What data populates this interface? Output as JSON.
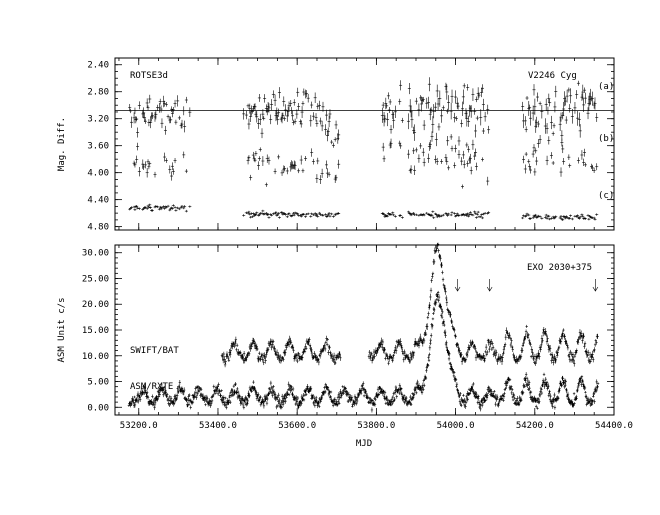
{
  "chart_data": [
    {
      "type": "scatter",
      "panel": "top",
      "ylabel": "Mag. Diff.",
      "xlim": [
        53140,
        54400
      ],
      "ylim": [
        4.85,
        2.3
      ],
      "y_inverted": true,
      "yticks": [
        "2.40",
        "2.80",
        "3.20",
        "3.60",
        "4.00",
        "4.40",
        "4.80"
      ],
      "yticks_values": [
        2.4,
        2.8,
        3.2,
        3.6,
        4.0,
        4.4,
        4.8
      ],
      "reference_line_y": 3.08,
      "annotations": {
        "left": "ROTSE3d",
        "right": "V2246 Cyg"
      },
      "series": [
        {
          "label": "(a)",
          "base": 3.08,
          "spread": 0.12
        },
        {
          "label": "(b)",
          "base": 3.9,
          "spread": 0.1
        },
        {
          "label": "(c)",
          "base": 4.56,
          "spread": 0.02
        }
      ],
      "observing_seasons_mjd": [
        [
          53175,
          53335
        ],
        [
          53465,
          53705
        ],
        [
          53815,
          54085
        ],
        [
          54165,
          54360
        ]
      ],
      "legend": "none",
      "grid": false
    },
    {
      "type": "scatter",
      "panel": "bottom",
      "xlabel": "MJD",
      "ylabel": "ASM Unit c/s",
      "xlim": [
        53140,
        54400
      ],
      "ylim": [
        -1.5,
        31.5
      ],
      "xticks": [
        "53200.0",
        "53400.0",
        "53600.0",
        "53800.0",
        "54000.0",
        "54200.0",
        "54400.0"
      ],
      "xticks_values": [
        53200,
        53400,
        53600,
        53800,
        54000,
        54200,
        54400
      ],
      "yticks": [
        "0.00",
        "5.00",
        "10.00",
        "15.00",
        "20.00",
        "25.00",
        "30.00"
      ],
      "yticks_values": [
        0,
        5,
        10,
        15,
        20,
        25,
        30
      ],
      "annotation": "EXO 2030+375",
      "series": [
        {
          "name": "SWIFT/BAT",
          "base": 9.5,
          "start_mjd": 53410,
          "end_mjd": 54360
        },
        {
          "name": "ASM/RXTE",
          "base": 1.0,
          "start_mjd": 53175,
          "end_mjd": 54360
        }
      ],
      "orbital_period_days": 46,
      "giant_outburst": {
        "peak_mjd": 53957,
        "asm_peak": 19.5,
        "bat_peak": 28.5
      },
      "arrows_mjd": [
        54005,
        54086,
        54353
      ],
      "legend": "none",
      "grid": false
    }
  ]
}
